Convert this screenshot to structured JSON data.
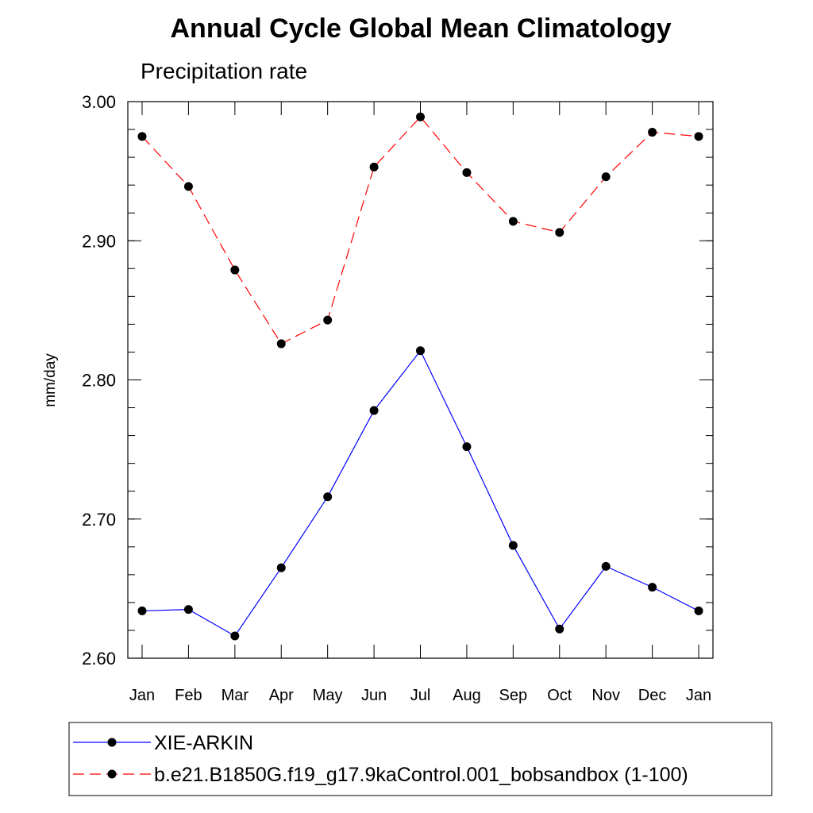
{
  "chart_data": {
    "type": "line",
    "title": "Annual Cycle Global Mean Climatology",
    "subtitle": "Precipitation rate",
    "xlabel": "",
    "ylabel": "mm/day",
    "categories": [
      "Jan",
      "Feb",
      "Mar",
      "Apr",
      "May",
      "Jun",
      "Jul",
      "Aug",
      "Sep",
      "Oct",
      "Nov",
      "Dec",
      "Jan"
    ],
    "ylim": [
      2.6,
      3.0
    ],
    "yticks": [
      "2.60",
      "2.70",
      "2.80",
      "2.90",
      "3.00"
    ],
    "ytick_values": [
      2.6,
      2.7,
      2.8,
      2.9,
      3.0
    ],
    "y_minor_step": 0.02,
    "grid": false,
    "legend_position": "bottom",
    "series": [
      {
        "name": "XIE-ARKIN",
        "color": "#0000ff",
        "dash": "solid",
        "marker": "filled-circle",
        "values": [
          2.634,
          2.635,
          2.616,
          2.665,
          2.716,
          2.778,
          2.821,
          2.752,
          2.681,
          2.621,
          2.666,
          2.651,
          2.634
        ]
      },
      {
        "name": "b.e21.B1850G.f19_g17.9kaControl.001_bobsandbox (1-100)",
        "color": "#ff0000",
        "dash": "dashed",
        "marker": "filled-circle",
        "values": [
          2.975,
          2.939,
          2.879,
          2.826,
          2.843,
          2.953,
          2.989,
          2.949,
          2.914,
          2.906,
          2.946,
          2.978,
          2.975
        ]
      }
    ]
  }
}
